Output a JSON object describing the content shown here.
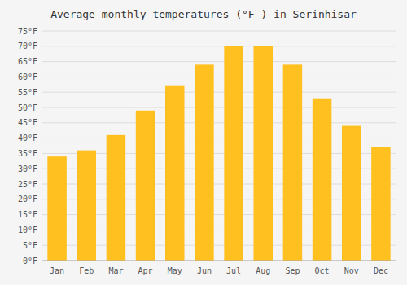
{
  "chart_data": {
    "type": "bar",
    "title": "Average monthly temperatures (°F ) in Serinhisar",
    "categories": [
      "Jan",
      "Feb",
      "Mar",
      "Apr",
      "May",
      "Jun",
      "Jul",
      "Aug",
      "Sep",
      "Oct",
      "Nov",
      "Dec"
    ],
    "values": [
      34,
      36,
      41,
      49,
      57,
      64,
      70,
      70,
      64,
      53,
      44,
      37
    ],
    "color": "#FFC020",
    "ylim": [
      0,
      75
    ],
    "yticks": [
      {
        "value": 0,
        "label": "0°F"
      },
      {
        "value": 5,
        "label": "5°F"
      },
      {
        "value": 10,
        "label": "10°F"
      },
      {
        "value": 15,
        "label": "15°F"
      },
      {
        "value": 20,
        "label": "20°F"
      },
      {
        "value": 25,
        "label": "25°F"
      },
      {
        "value": 30,
        "label": "30°F"
      },
      {
        "value": 35,
        "label": "35°F"
      },
      {
        "value": 40,
        "label": "40°F"
      },
      {
        "value": 45,
        "label": "45°F"
      },
      {
        "value": 50,
        "label": "50°F"
      },
      {
        "value": 55,
        "label": "55°F"
      },
      {
        "value": 60,
        "label": "60°F"
      },
      {
        "value": 65,
        "label": "65°F"
      },
      {
        "value": 70,
        "label": "70°F"
      },
      {
        "value": 75,
        "label": "75°F"
      }
    ],
    "grid": true
  }
}
